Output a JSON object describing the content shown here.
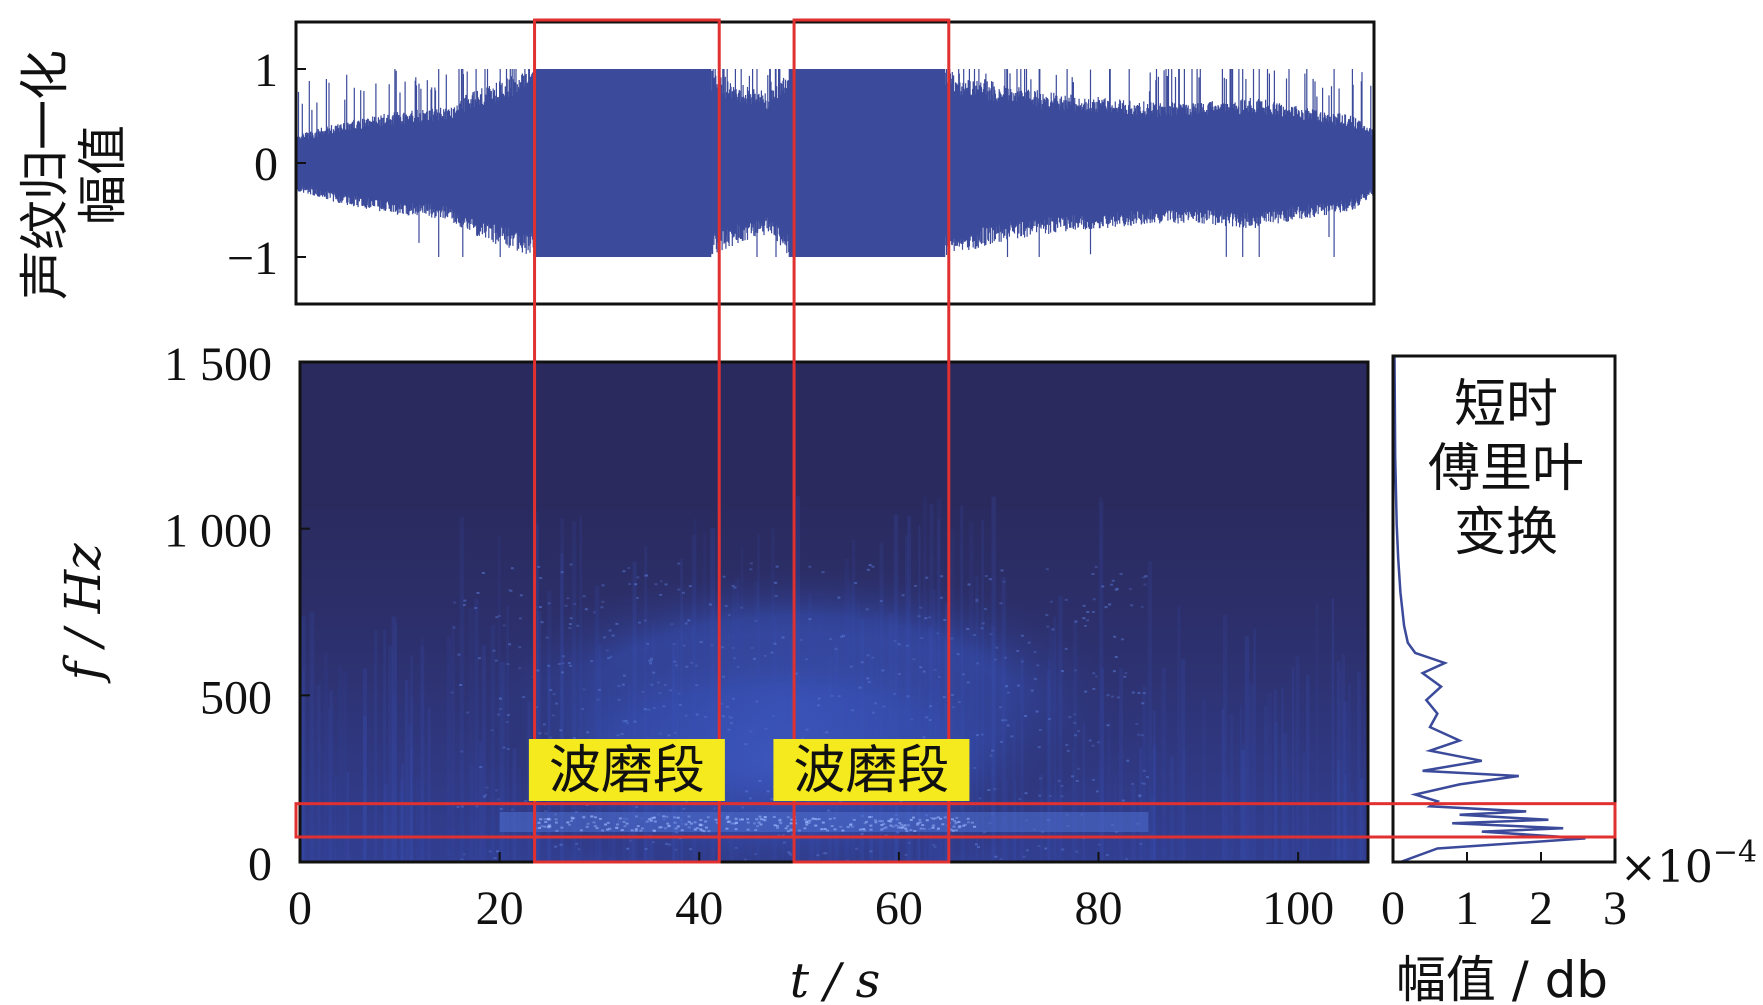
{
  "chart_data": [
    {
      "panel": "waveform",
      "type": "line",
      "ylabel": "声纹归一化\n幅值",
      "xlim": [
        0,
        107
      ],
      "ylim": [
        -1.5,
        1.5
      ],
      "yticks": [
        -1,
        0,
        1
      ],
      "ytick_labels": [
        "−1",
        "0",
        "1"
      ],
      "envelope": {
        "t": [
          0,
          5,
          10,
          15,
          18,
          22,
          24,
          30,
          36,
          41,
          44,
          47,
          49,
          55,
          60,
          64,
          70,
          75,
          80,
          85,
          90,
          95,
          100,
          105,
          107
        ],
        "amp": [
          0.3,
          0.45,
          0.55,
          0.6,
          0.8,
          0.95,
          1.0,
          1.0,
          1.0,
          1.0,
          0.85,
          0.75,
          1.0,
          1.0,
          1.0,
          1.0,
          0.85,
          0.75,
          0.7,
          0.65,
          0.65,
          0.7,
          0.6,
          0.5,
          0.35
        ]
      },
      "color": "#3b4a9a"
    },
    {
      "panel": "spectrogram",
      "type": "heatmap",
      "xlabel": "t / s",
      "ylabel": "f / Hz",
      "xlim": [
        0,
        107
      ],
      "ylim": [
        0,
        1500
      ],
      "xticks": [
        0,
        20,
        40,
        60,
        80,
        100
      ],
      "xtick_labels": [
        "0",
        "20",
        "40",
        "60",
        "80",
        "100"
      ],
      "yticks": [
        0,
        500,
        1000,
        1500
      ],
      "ytick_labels": [
        "0",
        "500",
        "1 000",
        "1 500"
      ],
      "background_color": "#2a2a5e",
      "energy_color": "#3a52b8"
    },
    {
      "panel": "stft_spectrum",
      "type": "line",
      "label": "短时\n傅里叶\n变换",
      "xlabel": "幅值 / db",
      "xlim": [
        0,
        3
      ],
      "xticks": [
        0,
        1,
        2,
        3
      ],
      "xtick_labels": [
        "0",
        "1",
        "2",
        "3"
      ],
      "xscale_label": "×10",
      "xscale_exp": "−4",
      "ylim": [
        0,
        1500
      ],
      "f": [
        0,
        40,
        70,
        90,
        100,
        115,
        125,
        140,
        150,
        165,
        180,
        200,
        230,
        255,
        270,
        300,
        330,
        360,
        400,
        440,
        480,
        520,
        560,
        590,
        620,
        650,
        700,
        800,
        900,
        1000,
        1200,
        1500
      ],
      "a": [
        0.1,
        0.6,
        2.6,
        1.2,
        2.3,
        0.8,
        2.1,
        0.9,
        1.8,
        0.5,
        0.6,
        0.3,
        0.9,
        1.7,
        0.4,
        1.2,
        0.5,
        0.9,
        0.5,
        0.6,
        0.45,
        0.65,
        0.4,
        0.7,
        0.3,
        0.2,
        0.15,
        0.1,
        0.07,
        0.05,
        0.03,
        0.02
      ],
      "color": "#3b4a9a"
    }
  ],
  "annotations": {
    "segments": [
      {
        "label": "波磨段",
        "t_start": 23.5,
        "t_end": 42
      },
      {
        "label": "波磨段",
        "t_start": 49.5,
        "t_end": 65
      }
    ],
    "band_hz": [
      75,
      175
    ],
    "box_color": "#e03030",
    "label_bg": "#f5ea1e"
  }
}
